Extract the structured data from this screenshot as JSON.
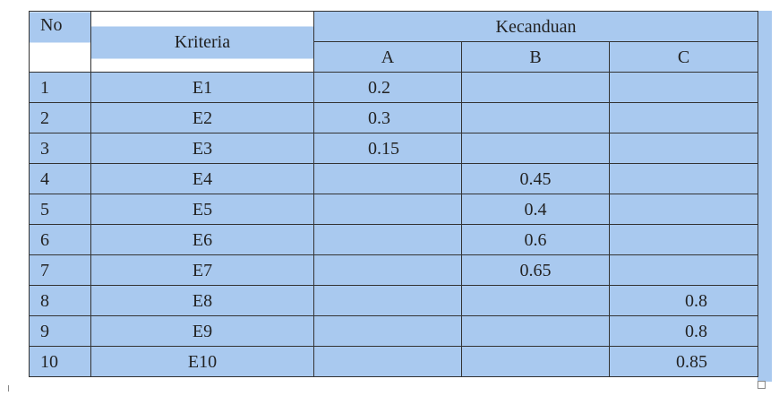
{
  "header": {
    "no": "No",
    "kriteria": "Kriteria",
    "group": "Kecanduan",
    "columns": [
      "A",
      "B",
      "C"
    ]
  },
  "table": {
    "rows": [
      [
        1,
        "E1",
        0.2,
        null,
        null
      ],
      [
        2,
        "E2",
        0.3,
        null,
        null
      ],
      [
        3,
        "E3",
        0.15,
        null,
        null
      ],
      [
        4,
        "E4",
        null,
        0.45,
        null
      ],
      [
        5,
        "E5",
        null,
        0.4,
        null
      ],
      [
        6,
        "E6",
        null,
        0.6,
        null
      ],
      [
        7,
        "E7",
        null,
        0.65,
        null
      ],
      [
        8,
        "E8",
        null,
        null,
        0.8
      ],
      [
        9,
        "E9",
        null,
        null,
        0.8
      ],
      [
        10,
        "E10",
        null,
        null,
        0.85
      ]
    ]
  }
}
